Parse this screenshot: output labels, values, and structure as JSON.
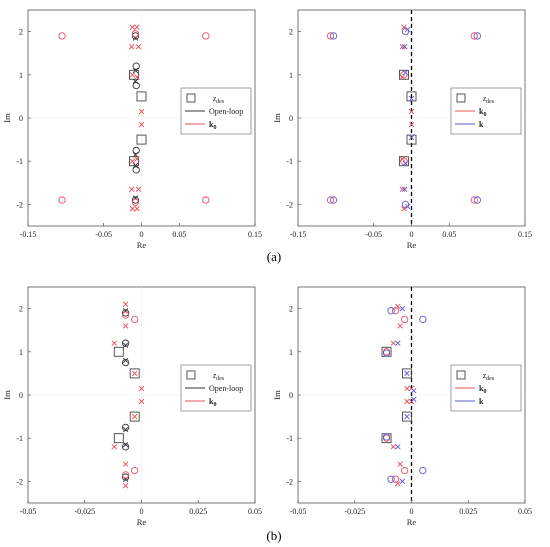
{
  "captions": {
    "a": "(a)",
    "b": "(b)"
  },
  "colors": {
    "red": "#e8505b",
    "blue": "#5b5bd6",
    "black": "#333333",
    "axis": "#555555"
  },
  "chart_data": [
    {
      "panel": "a-left",
      "type": "scatter",
      "xlabel": "Re",
      "ylabel": "Im",
      "xlim": [
        -0.15,
        0.15
      ],
      "ylim": [
        -2.5,
        2.5
      ],
      "xticks": [
        "-0.15",
        "-0.05",
        "0",
        "0.05",
        "0.15"
      ],
      "xtick_values": [
        -0.15,
        -0.05,
        0,
        0.05,
        0.15
      ],
      "yticks": [
        "-2",
        "-1",
        "0",
        "1",
        "2"
      ],
      "ytick_values": [
        -2,
        -1,
        0,
        1,
        2
      ],
      "legend": {
        "position": "middle-right",
        "entries": [
          "z_des",
          "Open-loop",
          "k_0"
        ]
      },
      "dashed_imag_axis": false,
      "z_des": [
        [
          -0.01,
          1.0
        ],
        [
          -0.01,
          -1.0
        ],
        [
          0.0,
          0.5
        ],
        [
          0.0,
          -0.5
        ]
      ],
      "series": [
        {
          "style": "black-o",
          "points": [
            [
              -0.008,
              1.9
            ],
            [
              -0.008,
              -1.9
            ],
            [
              -0.007,
              1.2
            ],
            [
              -0.007,
              -1.2
            ],
            [
              -0.007,
              0.75
            ],
            [
              -0.007,
              -0.75
            ]
          ]
        },
        {
          "style": "black-x",
          "points": [
            [
              -0.008,
              1.85
            ],
            [
              -0.008,
              -1.85
            ],
            [
              -0.008,
              1.1
            ],
            [
              -0.008,
              -1.1
            ],
            [
              -0.008,
              0.85
            ],
            [
              -0.008,
              -0.85
            ]
          ]
        },
        {
          "style": "red-o",
          "points": [
            [
              -0.105,
              1.9
            ],
            [
              0.085,
              1.9
            ],
            [
              -0.105,
              -1.9
            ],
            [
              0.085,
              -1.9
            ],
            [
              -0.008,
              1.95
            ],
            [
              -0.008,
              -1.95
            ]
          ]
        },
        {
          "style": "red-x",
          "points": [
            [
              -0.012,
              2.1
            ],
            [
              -0.006,
              2.1
            ],
            [
              -0.012,
              -2.1
            ],
            [
              -0.006,
              -2.1
            ],
            [
              -0.013,
              1.65
            ],
            [
              -0.004,
              1.65
            ],
            [
              -0.013,
              -1.65
            ],
            [
              -0.004,
              -1.65
            ],
            [
              -0.012,
              1.0
            ],
            [
              -0.006,
              0.95
            ],
            [
              -0.012,
              -1.0
            ],
            [
              -0.006,
              -0.95
            ],
            [
              0.0,
              0.15
            ],
            [
              0.0,
              -0.15
            ]
          ]
        }
      ]
    },
    {
      "panel": "a-right",
      "type": "scatter",
      "xlabel": "Re",
      "ylabel": "Im",
      "xlim": [
        -0.15,
        0.15
      ],
      "ylim": [
        -2.5,
        2.5
      ],
      "xticks": [
        "-0.15",
        "-0.05",
        "0",
        "0.05",
        "0.15"
      ],
      "xtick_values": [
        -0.15,
        -0.05,
        0,
        0.05,
        0.15
      ],
      "yticks": [
        "-2",
        "-1",
        "0",
        "1",
        "2"
      ],
      "ytick_values": [
        -2,
        -1,
        0,
        1,
        2
      ],
      "legend": {
        "position": "middle-right",
        "entries": [
          "z_des",
          "k_0",
          "k"
        ]
      },
      "dashed_imag_axis": true,
      "z_des": [
        [
          -0.01,
          1.0
        ],
        [
          -0.01,
          -1.0
        ],
        [
          0.0,
          0.5
        ],
        [
          0.0,
          -0.5
        ]
      ],
      "series": [
        {
          "style": "red-o",
          "points": [
            [
              -0.107,
              1.9
            ],
            [
              0.083,
              1.9
            ],
            [
              -0.107,
              -1.9
            ],
            [
              0.083,
              -1.9
            ],
            [
              -0.01,
              1.0
            ],
            [
              -0.01,
              -1.0
            ]
          ]
        },
        {
          "style": "blue-o",
          "points": [
            [
              -0.103,
              1.9
            ],
            [
              0.087,
              1.9
            ],
            [
              -0.103,
              -1.9
            ],
            [
              0.087,
              -1.9
            ],
            [
              -0.008,
              2.0
            ],
            [
              -0.008,
              -2.0
            ]
          ]
        },
        {
          "style": "red-x",
          "points": [
            [
              -0.01,
              2.1
            ],
            [
              -0.01,
              -2.1
            ],
            [
              -0.012,
              1.65
            ],
            [
              -0.012,
              -1.65
            ],
            [
              -0.012,
              0.95
            ],
            [
              -0.012,
              -0.95
            ],
            [
              0.0,
              0.15
            ],
            [
              0.0,
              -0.15
            ]
          ]
        },
        {
          "style": "blue-x",
          "points": [
            [
              -0.005,
              2.05
            ],
            [
              -0.005,
              -2.05
            ],
            [
              -0.009,
              1.65
            ],
            [
              -0.009,
              -1.65
            ],
            [
              -0.008,
              1.05
            ],
            [
              -0.008,
              -1.05
            ],
            [
              0.0,
              0.45
            ],
            [
              0.0,
              -0.45
            ]
          ]
        }
      ]
    },
    {
      "panel": "b-left",
      "type": "scatter",
      "xlabel": "Re",
      "ylabel": "Im",
      "xlim": [
        -0.05,
        0.05
      ],
      "ylim": [
        -2.5,
        2.5
      ],
      "xticks": [
        "-0.05",
        "-0.025",
        "0",
        "0.025",
        "0.05"
      ],
      "xtick_values": [
        -0.05,
        -0.025,
        0,
        0.025,
        0.05
      ],
      "yticks": [
        "-2",
        "-1",
        "0",
        "1",
        "2"
      ],
      "ytick_values": [
        -2,
        -1,
        0,
        1,
        2
      ],
      "legend": {
        "position": "middle-right",
        "entries": [
          "z_des",
          "Open-loop",
          "k_0"
        ]
      },
      "dashed_imag_axis": false,
      "z_des": [
        [
          -0.01,
          1.0
        ],
        [
          -0.01,
          -1.0
        ],
        [
          -0.003,
          0.5
        ],
        [
          -0.003,
          -0.5
        ]
      ],
      "series": [
        {
          "style": "black-o",
          "points": [
            [
              -0.007,
              1.9
            ],
            [
              -0.007,
              -1.9
            ],
            [
              -0.007,
              1.2
            ],
            [
              -0.007,
              -1.2
            ],
            [
              -0.007,
              0.75
            ],
            [
              -0.007,
              -0.75
            ]
          ]
        },
        {
          "style": "black-x",
          "points": [
            [
              -0.007,
              1.95
            ],
            [
              -0.007,
              -1.95
            ],
            [
              -0.007,
              1.15
            ],
            [
              -0.007,
              -1.15
            ],
            [
              -0.007,
              0.8
            ],
            [
              -0.007,
              -0.8
            ]
          ]
        },
        {
          "style": "red-o",
          "points": [
            [
              -0.007,
              1.85
            ],
            [
              -0.007,
              -1.85
            ],
            [
              -0.003,
              1.75
            ],
            [
              -0.003,
              -1.75
            ]
          ]
        },
        {
          "style": "red-x",
          "points": [
            [
              -0.007,
              2.1
            ],
            [
              -0.007,
              -2.1
            ],
            [
              -0.007,
              1.6
            ],
            [
              -0.007,
              -1.6
            ],
            [
              -0.012,
              1.2
            ],
            [
              -0.012,
              -1.2
            ],
            [
              -0.003,
              0.5
            ],
            [
              -0.003,
              -0.5
            ],
            [
              0.0,
              0.15
            ],
            [
              0.0,
              -0.15
            ]
          ]
        }
      ]
    },
    {
      "panel": "b-right",
      "type": "scatter",
      "xlabel": "Re",
      "ylabel": "Im",
      "xlim": [
        -0.05,
        0.05
      ],
      "ylim": [
        -2.5,
        2.5
      ],
      "xticks": [
        "-0.05",
        "-0.025",
        "0",
        "0.025",
        "0.05"
      ],
      "xtick_values": [
        -0.05,
        -0.025,
        0,
        0.025,
        0.05
      ],
      "yticks": [
        "-2",
        "-1",
        "0",
        "1",
        "2"
      ],
      "ytick_values": [
        -2,
        -1,
        0,
        1,
        2
      ],
      "legend": {
        "position": "middle-right",
        "entries": [
          "z_des",
          "k_0",
          "k"
        ]
      },
      "dashed_imag_axis": true,
      "z_des": [
        [
          -0.011,
          1.0
        ],
        [
          -0.011,
          -1.0
        ],
        [
          -0.002,
          0.5
        ],
        [
          -0.002,
          -0.5
        ]
      ],
      "series": [
        {
          "style": "red-o",
          "points": [
            [
              -0.007,
              1.95
            ],
            [
              -0.007,
              -1.95
            ],
            [
              -0.003,
              1.75
            ],
            [
              -0.003,
              -1.75
            ],
            [
              -0.011,
              1.0
            ],
            [
              -0.011,
              -1.0
            ]
          ]
        },
        {
          "style": "blue-o",
          "points": [
            [
              -0.009,
              1.95
            ],
            [
              -0.009,
              -1.95
            ],
            [
              0.005,
              1.75
            ],
            [
              0.005,
              -1.75
            ],
            [
              -0.011,
              0.97
            ],
            [
              -0.011,
              -0.97
            ]
          ]
        },
        {
          "style": "red-x",
          "points": [
            [
              -0.006,
              2.05
            ],
            [
              -0.006,
              -2.05
            ],
            [
              -0.005,
              1.6
            ],
            [
              -0.005,
              -1.6
            ],
            [
              -0.008,
              1.2
            ],
            [
              -0.008,
              -1.2
            ],
            [
              -0.002,
              0.15
            ],
            [
              -0.002,
              -0.15
            ],
            [
              0.0,
              0.15
            ],
            [
              0.0,
              -0.15
            ]
          ]
        },
        {
          "style": "blue-x",
          "points": [
            [
              -0.004,
              2.0
            ],
            [
              -0.004,
              -2.0
            ],
            [
              -0.006,
              1.2
            ],
            [
              -0.006,
              -1.2
            ],
            [
              -0.002,
              0.5
            ],
            [
              -0.002,
              -0.5
            ],
            [
              0.001,
              0.1
            ],
            [
              0.001,
              -0.1
            ]
          ]
        }
      ]
    }
  ]
}
